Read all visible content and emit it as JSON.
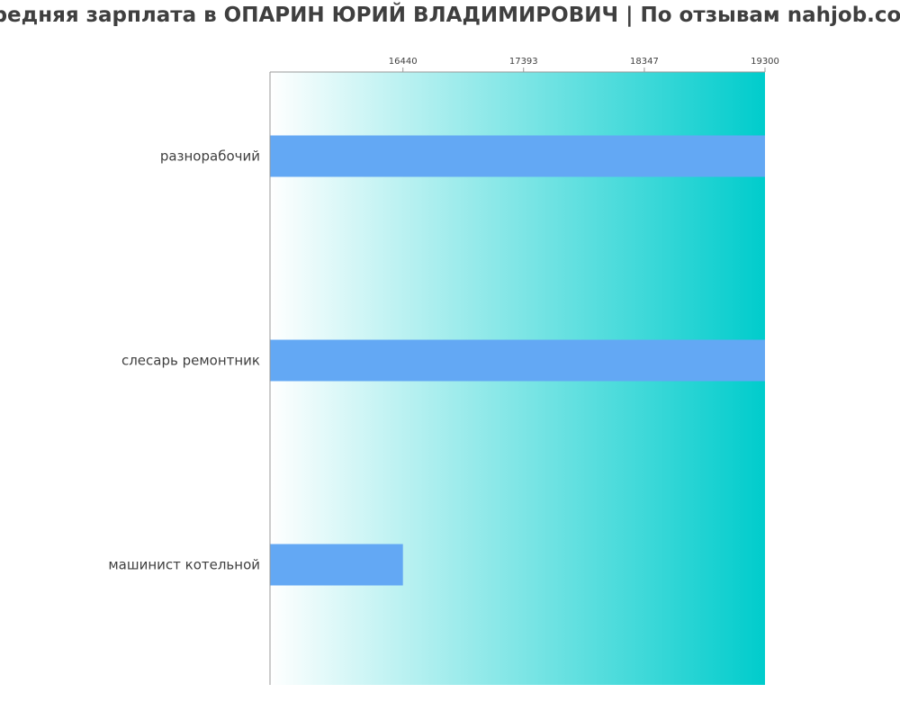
{
  "title": "Средняя зарплата в ОПАРИН ЮРИЙ ВЛАДИМИРОВИЧ | По отзывам nahjob.com",
  "chart_data": {
    "type": "bar",
    "orientation": "horizontal",
    "categories": [
      "разнорабочий",
      "слесарь ремонтник",
      "машинист котельной"
    ],
    "values": [
      19300,
      19300,
      16440
    ],
    "xlim": [
      15390,
      19300
    ],
    "x_ticks": [
      16440,
      17393,
      18347,
      19300
    ],
    "tick_position": "top",
    "grid": false,
    "bar_color": "#63a8f4",
    "background_gradient": [
      "#ffffff",
      "#00cccc"
    ]
  }
}
